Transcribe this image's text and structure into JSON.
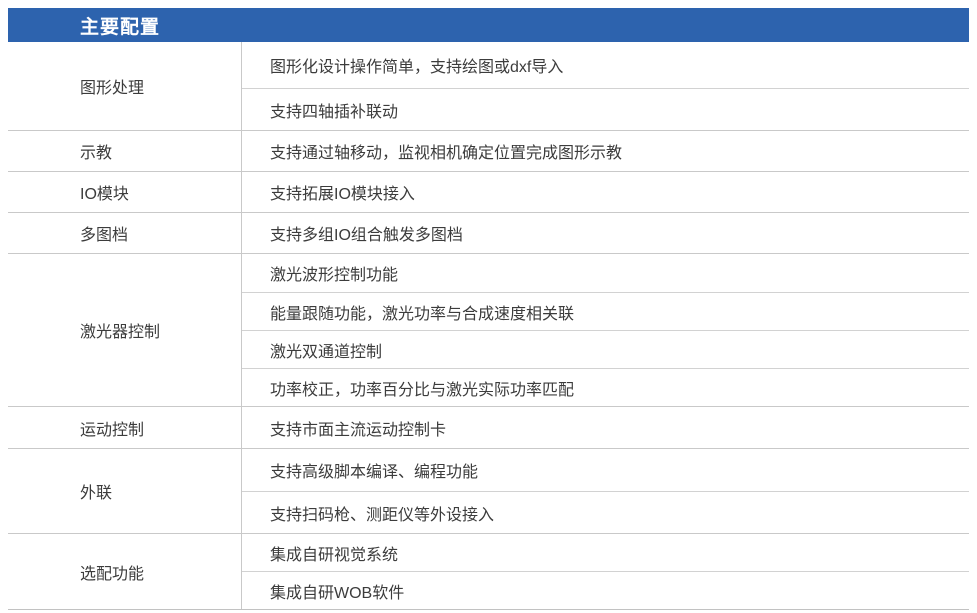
{
  "table": {
    "header": {
      "label": "主要配置"
    },
    "colors": {
      "header_bg": "#2d63ae",
      "header_text": "#ffffff",
      "body_text": "#3c3c3c",
      "divider_line": "#c9c9c9"
    },
    "groups": [
      {
        "category": "图形处理",
        "features": [
          "图形化设计操作简单，支持绘图或dxf导入",
          "支持四轴插补联动"
        ]
      },
      {
        "category": "示教",
        "features": [
          "支持通过轴移动，监视相机确定位置完成图形示教"
        ]
      },
      {
        "category": "IO模块",
        "features": [
          "支持拓展IO模块接入"
        ]
      },
      {
        "category": "多图档",
        "features": [
          "支持多组IO组合触发多图档"
        ]
      },
      {
        "category": "激光器控制",
        "features": [
          "激光波形控制功能",
          "能量跟随功能，激光功率与合成速度相关联",
          "激光双通道控制",
          "功率校正，功率百分比与激光实际功率匹配"
        ]
      },
      {
        "category": "运动控制",
        "features": [
          "支持市面主流运动控制卡"
        ]
      },
      {
        "category": "外联",
        "features": [
          "支持高级脚本编译、编程功能",
          "支持扫码枪、测距仪等外设接入"
        ]
      },
      {
        "category": "选配功能",
        "features": [
          "集成自研视觉系统",
          "集成自研WOB软件"
        ]
      }
    ]
  }
}
